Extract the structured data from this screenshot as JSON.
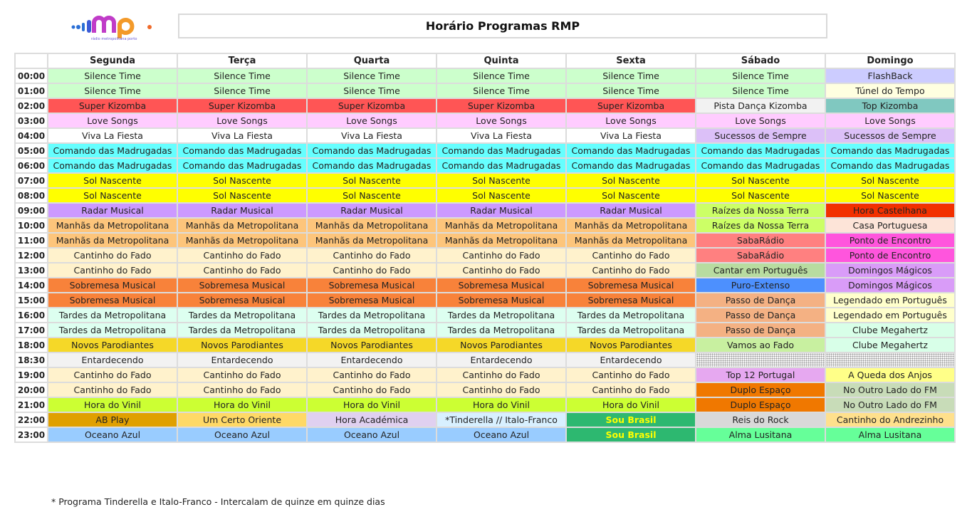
{
  "title": "Horário Programas RMP",
  "logo_text": "rmp",
  "days": [
    "Segunda",
    "Terça",
    "Quarta",
    "Quinta",
    "Sexta",
    "Sábado",
    "Domingo"
  ],
  "colors": {
    "silence": "#ccffcc",
    "flashback": "#ccccff",
    "tunel": "#ffffe0",
    "superkiz": "#ff5555",
    "pista": "#f2f2f2",
    "topkiz": "#80c8c0",
    "love": "#ffccff",
    "viva": "#ffffff",
    "sucessos": "#dcc0f8",
    "comando": "#66ffff",
    "sol": "#ffff00",
    "radar": "#cc99ff",
    "raizes": "#ccff66",
    "horacast": "#f23000",
    "manhas": "#fdc57b",
    "casa": "#fde4d8",
    "saba": "#ff8080",
    "ponto": "#ff55dd",
    "fado": "#fff2cc",
    "cantar": "#b8dca0",
    "domingos": "#d99cf8",
    "sobremesa": "#f8823a",
    "puro": "#4d90fe",
    "passo": "#f4b183",
    "legendado": "#ffffcc",
    "tardes": "#ddfff0",
    "clube": "#d8ffe8",
    "novos": "#f5d828",
    "vamos": "#c8f0a0",
    "entard": "#f2f2f2",
    "top12": "#e6a8f0",
    "queda": "#ffff88",
    "vinil": "#ccff33",
    "duplo": "#f07800",
    "outro": "#c8dcb8",
    "ab": "#e0a000",
    "certo": "#ffd966",
    "academica": "#e0d0f0",
    "tinder": "#d8f0ff",
    "brasil": "#2db870",
    "reis": "#d9d9d9",
    "andre": "#ffe08c",
    "oceano": "#99ccff",
    "alma": "#66ff99",
    "brasil_text": "#ffff00"
  },
  "rows": [
    {
      "time": "00:00",
      "cells": [
        [
          "Silence Time",
          "silence"
        ],
        [
          "Silence Time",
          "silence"
        ],
        [
          "Silence Time",
          "silence"
        ],
        [
          "Silence Time",
          "silence"
        ],
        [
          "Silence Time",
          "silence"
        ],
        [
          "Silence Time",
          "silence"
        ],
        [
          "FlashBack",
          "flashback"
        ]
      ]
    },
    {
      "time": "01:00",
      "cells": [
        [
          "Silence Time",
          "silence"
        ],
        [
          "Silence Time",
          "silence"
        ],
        [
          "Silence Time",
          "silence"
        ],
        [
          "Silence Time",
          "silence"
        ],
        [
          "Silence Time",
          "silence"
        ],
        [
          "Silence Time",
          "silence"
        ],
        [
          "Túnel do Tempo",
          "tunel"
        ]
      ]
    },
    {
      "time": "02:00",
      "cells": [
        [
          "Super Kizomba",
          "superkiz"
        ],
        [
          "Super Kizomba",
          "superkiz"
        ],
        [
          "Super Kizomba",
          "superkiz"
        ],
        [
          "Super Kizomba",
          "superkiz"
        ],
        [
          "Super Kizomba",
          "superkiz"
        ],
        [
          "Pista Dança Kizomba",
          "pista"
        ],
        [
          "Top Kizomba",
          "topkiz"
        ]
      ]
    },
    {
      "time": "03:00",
      "cells": [
        [
          "Love Songs",
          "love"
        ],
        [
          "Love Songs",
          "love"
        ],
        [
          "Love Songs",
          "love"
        ],
        [
          "Love Songs",
          "love"
        ],
        [
          "Love Songs",
          "love"
        ],
        [
          "Love Songs",
          "love"
        ],
        [
          "Love Songs",
          "love"
        ]
      ]
    },
    {
      "time": "04:00",
      "cells": [
        [
          "Viva La Fiesta",
          "viva"
        ],
        [
          "Viva La Fiesta",
          "viva"
        ],
        [
          "Viva La Fiesta",
          "viva"
        ],
        [
          "Viva La Fiesta",
          "viva"
        ],
        [
          "Viva La Fiesta",
          "viva"
        ],
        [
          "Sucessos de Sempre",
          "sucessos"
        ],
        [
          "Sucessos de Sempre",
          "sucessos"
        ]
      ]
    },
    {
      "time": "05:00",
      "cells": [
        [
          "Comando das Madrugadas",
          "comando"
        ],
        [
          "Comando das Madrugadas",
          "comando"
        ],
        [
          "Comando das Madrugadas",
          "comando"
        ],
        [
          "Comando das Madrugadas",
          "comando"
        ],
        [
          "Comando das Madrugadas",
          "comando"
        ],
        [
          "Comando das Madrugadas",
          "comando"
        ],
        [
          "Comando das Madrugadas",
          "comando"
        ]
      ]
    },
    {
      "time": "06:00",
      "cells": [
        [
          "Comando das Madrugadas",
          "comando"
        ],
        [
          "Comando das Madrugadas",
          "comando"
        ],
        [
          "Comando das Madrugadas",
          "comando"
        ],
        [
          "Comando das Madrugadas",
          "comando"
        ],
        [
          "Comando das Madrugadas",
          "comando"
        ],
        [
          "Comando das Madrugadas",
          "comando"
        ],
        [
          "Comando das Madrugadas",
          "comando"
        ]
      ]
    },
    {
      "time": "07:00",
      "cells": [
        [
          "Sol Nascente",
          "sol"
        ],
        [
          "Sol Nascente",
          "sol"
        ],
        [
          "Sol Nascente",
          "sol"
        ],
        [
          "Sol Nascente",
          "sol"
        ],
        [
          "Sol Nascente",
          "sol"
        ],
        [
          "Sol Nascente",
          "sol"
        ],
        [
          "Sol Nascente",
          "sol"
        ]
      ]
    },
    {
      "time": "08:00",
      "cells": [
        [
          "Sol Nascente",
          "sol"
        ],
        [
          "Sol Nascente",
          "sol"
        ],
        [
          "Sol Nascente",
          "sol"
        ],
        [
          "Sol Nascente",
          "sol"
        ],
        [
          "Sol Nascente",
          "sol"
        ],
        [
          "Sol Nascente",
          "sol"
        ],
        [
          "Sol Nascente",
          "sol"
        ]
      ]
    },
    {
      "time": "09:00",
      "cells": [
        [
          "Radar Musical",
          "radar"
        ],
        [
          "Radar Musical",
          "radar"
        ],
        [
          "Radar Musical",
          "radar"
        ],
        [
          "Radar Musical",
          "radar"
        ],
        [
          "Radar Musical",
          "radar"
        ],
        [
          "Raízes da Nossa Terra",
          "raizes"
        ],
        [
          "Hora Castelhana",
          "horacast"
        ]
      ]
    },
    {
      "time": "10:00",
      "cells": [
        [
          "Manhãs da Metropolitana",
          "manhas"
        ],
        [
          "Manhãs da Metropolitana",
          "manhas"
        ],
        [
          "Manhãs da Metropolitana",
          "manhas"
        ],
        [
          "Manhãs da Metropolitana",
          "manhas"
        ],
        [
          "Manhãs da Metropolitana",
          "manhas"
        ],
        [
          "Raízes da Nossa Terra",
          "raizes"
        ],
        [
          "Casa Portuguesa",
          "casa"
        ]
      ]
    },
    {
      "time": "11:00",
      "cells": [
        [
          "Manhãs da Metropolitana",
          "manhas"
        ],
        [
          "Manhãs da Metropolitana",
          "manhas"
        ],
        [
          "Manhãs da Metropolitana",
          "manhas"
        ],
        [
          "Manhãs da Metropolitana",
          "manhas"
        ],
        [
          "Manhãs da Metropolitana",
          "manhas"
        ],
        [
          "SabaRádio",
          "saba"
        ],
        [
          "Ponto de Encontro",
          "ponto"
        ]
      ]
    },
    {
      "time": "12:00",
      "cells": [
        [
          "Cantinho do Fado",
          "fado"
        ],
        [
          "Cantinho do Fado",
          "fado"
        ],
        [
          "Cantinho do Fado",
          "fado"
        ],
        [
          "Cantinho do Fado",
          "fado"
        ],
        [
          "Cantinho do Fado",
          "fado"
        ],
        [
          "SabaRádio",
          "saba"
        ],
        [
          "Ponto de Encontro",
          "ponto"
        ]
      ]
    },
    {
      "time": "13:00",
      "cells": [
        [
          "Cantinho do Fado",
          "fado"
        ],
        [
          "Cantinho do Fado",
          "fado"
        ],
        [
          "Cantinho do Fado",
          "fado"
        ],
        [
          "Cantinho do Fado",
          "fado"
        ],
        [
          "Cantinho do Fado",
          "fado"
        ],
        [
          "Cantar em Português",
          "cantar"
        ],
        [
          "Domingos Mágicos",
          "domingos"
        ]
      ]
    },
    {
      "time": "14:00",
      "cells": [
        [
          "Sobremesa Musical",
          "sobremesa"
        ],
        [
          "Sobremesa Musical",
          "sobremesa"
        ],
        [
          "Sobremesa Musical",
          "sobremesa"
        ],
        [
          "Sobremesa Musical",
          "sobremesa"
        ],
        [
          "Sobremesa Musical",
          "sobremesa"
        ],
        [
          "Puro-Extenso",
          "puro"
        ],
        [
          "Domingos Mágicos",
          "domingos"
        ]
      ]
    },
    {
      "time": "15:00",
      "cells": [
        [
          "Sobremesa Musical",
          "sobremesa"
        ],
        [
          "Sobremesa Musical",
          "sobremesa"
        ],
        [
          "Sobremesa Musical",
          "sobremesa"
        ],
        [
          "Sobremesa Musical",
          "sobremesa"
        ],
        [
          "Sobremesa Musical",
          "sobremesa"
        ],
        [
          "Passo de Dança",
          "passo"
        ],
        [
          "Legendado em Português",
          "legendado"
        ]
      ]
    },
    {
      "time": "16:00",
      "cells": [
        [
          "Tardes da Metropolitana",
          "tardes"
        ],
        [
          "Tardes da Metropolitana",
          "tardes"
        ],
        [
          "Tardes da Metropolitana",
          "tardes"
        ],
        [
          "Tardes da Metropolitana",
          "tardes"
        ],
        [
          "Tardes da Metropolitana",
          "tardes"
        ],
        [
          "Passo de Dança",
          "passo"
        ],
        [
          "Legendado em Português",
          "legendado"
        ]
      ]
    },
    {
      "time": "17:00",
      "cells": [
        [
          "Tardes da Metropolitana",
          "tardes"
        ],
        [
          "Tardes da Metropolitana",
          "tardes"
        ],
        [
          "Tardes da Metropolitana",
          "tardes"
        ],
        [
          "Tardes da Metropolitana",
          "tardes"
        ],
        [
          "Tardes da Metropolitana",
          "tardes"
        ],
        [
          "Passo de Dança",
          "passo"
        ],
        [
          "Clube Megahertz",
          "clube"
        ]
      ]
    },
    {
      "time": "18:00",
      "cells": [
        [
          "Novos Parodiantes",
          "novos"
        ],
        [
          "Novos Parodiantes",
          "novos"
        ],
        [
          "Novos Parodiantes",
          "novos"
        ],
        [
          "Novos Parodiantes",
          "novos"
        ],
        [
          "Novos Parodiantes",
          "novos"
        ],
        [
          "Vamos ao Fado",
          "vamos"
        ],
        [
          "Clube Megahertz",
          "clube"
        ]
      ]
    },
    {
      "time": "18:30",
      "cells": [
        [
          "Entardecendo",
          "entard"
        ],
        [
          "Entardecendo",
          "entard"
        ],
        [
          "Entardecendo",
          "entard"
        ],
        [
          "Entardecendo",
          "entard"
        ],
        [
          "Entardecendo",
          "entard"
        ],
        [
          "",
          "dots"
        ],
        [
          "",
          "dots"
        ]
      ]
    },
    {
      "time": "19:00",
      "cells": [
        [
          "Cantinho do Fado",
          "fado"
        ],
        [
          "Cantinho do Fado",
          "fado"
        ],
        [
          "Cantinho do Fado",
          "fado"
        ],
        [
          "Cantinho do Fado",
          "fado"
        ],
        [
          "Cantinho do Fado",
          "fado"
        ],
        [
          "Top 12 Portugal",
          "top12"
        ],
        [
          "A Queda dos Anjos",
          "queda"
        ]
      ]
    },
    {
      "time": "20:00",
      "cells": [
        [
          "Cantinho do Fado",
          "fado"
        ],
        [
          "Cantinho do Fado",
          "fado"
        ],
        [
          "Cantinho do Fado",
          "fado"
        ],
        [
          "Cantinho do Fado",
          "fado"
        ],
        [
          "Cantinho do Fado",
          "fado"
        ],
        [
          "Duplo Espaço",
          "duplo"
        ],
        [
          "No Outro Lado do FM",
          "outro"
        ]
      ]
    },
    {
      "time": "21:00",
      "cells": [
        [
          "Hora do Vinil",
          "vinil"
        ],
        [
          "Hora do Vinil",
          "vinil"
        ],
        [
          "Hora do Vinil",
          "vinil"
        ],
        [
          "Hora do Vinil",
          "vinil"
        ],
        [
          "Hora do Vinil",
          "vinil"
        ],
        [
          "Duplo Espaço",
          "duplo"
        ],
        [
          "No Outro Lado do FM",
          "outro"
        ]
      ]
    },
    {
      "time": "22:00",
      "cells": [
        [
          "AB Play",
          "ab"
        ],
        [
          "Um Certo Oriente",
          "certo"
        ],
        [
          "Hora Académica",
          "academica"
        ],
        [
          "*Tinderella // Italo-Franco",
          "tinder"
        ],
        [
          "Sou Brasil",
          "brasil"
        ],
        [
          "Reis do Rock",
          "reis"
        ],
        [
          "Cantinho do Andrezinho",
          "andre"
        ]
      ]
    },
    {
      "time": "23:00",
      "cells": [
        [
          "Oceano Azul",
          "oceano"
        ],
        [
          "Oceano Azul",
          "oceano"
        ],
        [
          "Oceano Azul",
          "oceano"
        ],
        [
          "Oceano Azul",
          "oceano"
        ],
        [
          "Sou Brasil",
          "brasil"
        ],
        [
          "Alma Lusitana",
          "alma"
        ],
        [
          "Alma Lusitana",
          "alma"
        ]
      ]
    }
  ],
  "footnote": "* Programa Tinderella e Italo-Franco - Intercalam de quinze em quinze dias"
}
